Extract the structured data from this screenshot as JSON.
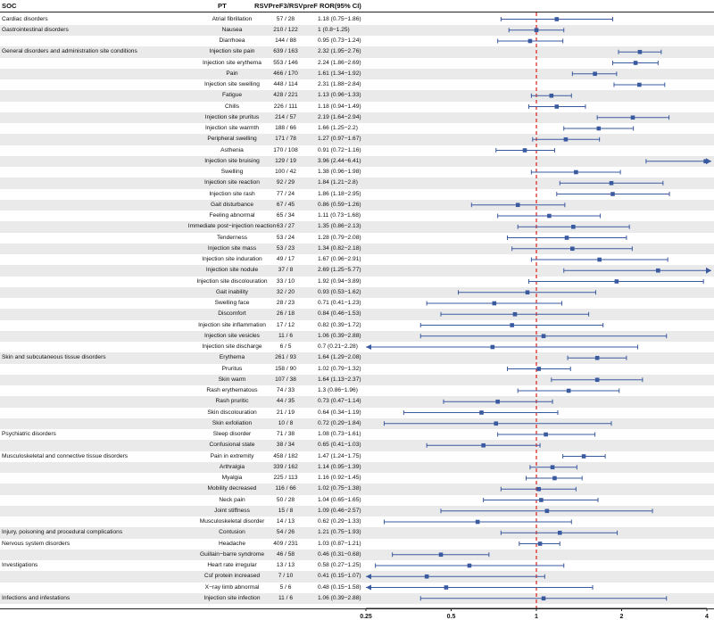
{
  "header": {
    "soc": "SOC",
    "pt": "PT",
    "counts": "RSVPreF3/RSVpreF",
    "ror": "ROR(95% CI)"
  },
  "colors": {
    "ci": "#3a5aa0",
    "refline": "#e0201c",
    "stripe": "#eaeaea"
  },
  "chart_data": {
    "type": "forest",
    "x_scale": "log2",
    "xlim": [
      0.25,
      4
    ],
    "xticks": [
      "0.25",
      "0.5",
      "1",
      "2",
      "4"
    ],
    "reference": 1,
    "rows": [
      {
        "soc": "Cardiac disorders",
        "pt": "Atrial fibrillation",
        "counts": "57 / 28",
        "ror_text": "1.18 (0.75−1.86)",
        "ror": 1.18,
        "lo": 0.75,
        "hi": 1.86
      },
      {
        "soc": "Gastrointestinal disorders",
        "pt": "Nausea",
        "counts": "210 / 122",
        "ror_text": "1 (0.8−1.25)",
        "ror": 1,
        "lo": 0.8,
        "hi": 1.25
      },
      {
        "soc": "",
        "pt": "Diarrhoea",
        "counts": "144 / 88",
        "ror_text": "0.95 (0.73−1.24)",
        "ror": 0.95,
        "lo": 0.73,
        "hi": 1.24
      },
      {
        "soc": "General disorders and administration site conditions",
        "pt": "Injection site pain",
        "counts": "639 / 163",
        "ror_text": "2.32 (1.95−2.76)",
        "ror": 2.32,
        "lo": 1.95,
        "hi": 2.76
      },
      {
        "soc": "",
        "pt": "Injection site erythema",
        "counts": "553 / 146",
        "ror_text": "2.24 (1.86−2.69)",
        "ror": 2.24,
        "lo": 1.86,
        "hi": 2.69
      },
      {
        "soc": "",
        "pt": "Pain",
        "counts": "466 / 170",
        "ror_text": "1.61 (1.34−1.92)",
        "ror": 1.61,
        "lo": 1.34,
        "hi": 1.92
      },
      {
        "soc": "",
        "pt": "Injection site swelling",
        "counts": "448 / 114",
        "ror_text": "2.31 (1.88−2.84)",
        "ror": 2.31,
        "lo": 1.88,
        "hi": 2.84
      },
      {
        "soc": "",
        "pt": "Fatigue",
        "counts": "428 / 221",
        "ror_text": "1.13 (0.96−1.33)",
        "ror": 1.13,
        "lo": 0.96,
        "hi": 1.33
      },
      {
        "soc": "",
        "pt": "Chills",
        "counts": "226 / 111",
        "ror_text": "1.18 (0.94−1.49)",
        "ror": 1.18,
        "lo": 0.94,
        "hi": 1.49
      },
      {
        "soc": "",
        "pt": "Injection site pruritus",
        "counts": "214 / 57",
        "ror_text": "2.19 (1.64−2.94)",
        "ror": 2.19,
        "lo": 1.64,
        "hi": 2.94
      },
      {
        "soc": "",
        "pt": "Injection site warmth",
        "counts": "188 / 66",
        "ror_text": "1.66 (1.25−2.2)",
        "ror": 1.66,
        "lo": 1.25,
        "hi": 2.2
      },
      {
        "soc": "",
        "pt": "Peripheral swelling",
        "counts": "171 / 78",
        "ror_text": "1.27 (0.97−1.67)",
        "ror": 1.27,
        "lo": 0.97,
        "hi": 1.67
      },
      {
        "soc": "",
        "pt": "Asthenia",
        "counts": "170 / 108",
        "ror_text": "0.91 (0.72−1.16)",
        "ror": 0.91,
        "lo": 0.72,
        "hi": 1.16
      },
      {
        "soc": "",
        "pt": "Injection site bruising",
        "counts": "129 / 19",
        "ror_text": "3.96 (2.44−6.41)",
        "ror": 3.96,
        "lo": 2.44,
        "hi": 6.41
      },
      {
        "soc": "",
        "pt": "Swelling",
        "counts": "100 / 42",
        "ror_text": "1.38 (0.96−1.98)",
        "ror": 1.38,
        "lo": 0.96,
        "hi": 1.98
      },
      {
        "soc": "",
        "pt": "Injection site reaction",
        "counts": "92 / 29",
        "ror_text": "1.84 (1.21−2.8)",
        "ror": 1.84,
        "lo": 1.21,
        "hi": 2.8
      },
      {
        "soc": "",
        "pt": "Injection site rash",
        "counts": "77 / 24",
        "ror_text": "1.86 (1.18−2.95)",
        "ror": 1.86,
        "lo": 1.18,
        "hi": 2.95
      },
      {
        "soc": "",
        "pt": "Gait disturbance",
        "counts": "67 / 45",
        "ror_text": "0.86 (0.59−1.26)",
        "ror": 0.86,
        "lo": 0.59,
        "hi": 1.26
      },
      {
        "soc": "",
        "pt": "Feeling abnormal",
        "counts": "65 / 34",
        "ror_text": "1.11 (0.73−1.68)",
        "ror": 1.11,
        "lo": 0.73,
        "hi": 1.68
      },
      {
        "soc": "",
        "pt": "Immediate post−injection reaction",
        "counts": "63 / 27",
        "ror_text": "1.35 (0.86−2.13)",
        "ror": 1.35,
        "lo": 0.86,
        "hi": 2.13
      },
      {
        "soc": "",
        "pt": "Tenderness",
        "counts": "53 / 24",
        "ror_text": "1.28 (0.79−2.08)",
        "ror": 1.28,
        "lo": 0.79,
        "hi": 2.08
      },
      {
        "soc": "",
        "pt": "Injection site mass",
        "counts": "53 / 23",
        "ror_text": "1.34 (0.82−2.18)",
        "ror": 1.34,
        "lo": 0.82,
        "hi": 2.18
      },
      {
        "soc": "",
        "pt": "Injection site induration",
        "counts": "49 / 17",
        "ror_text": "1.67 (0.96−2.91)",
        "ror": 1.67,
        "lo": 0.96,
        "hi": 2.91
      },
      {
        "soc": "",
        "pt": "Injection site nodule",
        "counts": "37 / 8",
        "ror_text": "2.69 (1.25−5.77)",
        "ror": 2.69,
        "lo": 1.25,
        "hi": 5.77
      },
      {
        "soc": "",
        "pt": "Injection site discolouration",
        "counts": "33 / 10",
        "ror_text": "1.92 (0.94−3.89)",
        "ror": 1.92,
        "lo": 0.94,
        "hi": 3.89
      },
      {
        "soc": "",
        "pt": "Gait inability",
        "counts": "32 / 20",
        "ror_text": "0.93 (0.53−1.62)",
        "ror": 0.93,
        "lo": 0.53,
        "hi": 1.62
      },
      {
        "soc": "",
        "pt": "Swelling face",
        "counts": "28 / 23",
        "ror_text": "0.71 (0.41−1.23)",
        "ror": 0.71,
        "lo": 0.41,
        "hi": 1.23
      },
      {
        "soc": "",
        "pt": "Discomfort",
        "counts": "26 / 18",
        "ror_text": "0.84 (0.46−1.53)",
        "ror": 0.84,
        "lo": 0.46,
        "hi": 1.53
      },
      {
        "soc": "",
        "pt": "Injection site inflammation",
        "counts": "17 / 12",
        "ror_text": "0.82 (0.39−1.72)",
        "ror": 0.82,
        "lo": 0.39,
        "hi": 1.72
      },
      {
        "soc": "",
        "pt": "Injection site vesicles",
        "counts": "11 / 6",
        "ror_text": "1.06 (0.39−2.88)",
        "ror": 1.06,
        "lo": 0.39,
        "hi": 2.88
      },
      {
        "soc": "",
        "pt": "Injection site discharge",
        "counts": "6 / 5",
        "ror_text": "0.7 (0.21−2.28)",
        "ror": 0.7,
        "lo": 0.21,
        "hi": 2.28
      },
      {
        "soc": "Skin and subcutaneous tissue disorders",
        "pt": "Erythema",
        "counts": "261 / 93",
        "ror_text": "1.64 (1.29−2.08)",
        "ror": 1.64,
        "lo": 1.29,
        "hi": 2.08
      },
      {
        "soc": "",
        "pt": "Pruritus",
        "counts": "158 / 90",
        "ror_text": "1.02 (0.79−1.32)",
        "ror": 1.02,
        "lo": 0.79,
        "hi": 1.32
      },
      {
        "soc": "",
        "pt": "Skin warm",
        "counts": "107 / 38",
        "ror_text": "1.64 (1.13−2.37)",
        "ror": 1.64,
        "lo": 1.13,
        "hi": 2.37
      },
      {
        "soc": "",
        "pt": "Rash erythematous",
        "counts": "74 / 33",
        "ror_text": "1.3 (0.86−1.96)",
        "ror": 1.3,
        "lo": 0.86,
        "hi": 1.96
      },
      {
        "soc": "",
        "pt": "Rash pruritic",
        "counts": "44 / 35",
        "ror_text": "0.73 (0.47−1.14)",
        "ror": 0.73,
        "lo": 0.47,
        "hi": 1.14
      },
      {
        "soc": "",
        "pt": "Skin discolouration",
        "counts": "21 / 19",
        "ror_text": "0.64 (0.34−1.19)",
        "ror": 0.64,
        "lo": 0.34,
        "hi": 1.19
      },
      {
        "soc": "",
        "pt": "Skin exfoliation",
        "counts": "10 / 8",
        "ror_text": "0.72 (0.29−1.84)",
        "ror": 0.72,
        "lo": 0.29,
        "hi": 1.84
      },
      {
        "soc": "Psychiatric disorders",
        "pt": "Sleep disorder",
        "counts": "71 / 38",
        "ror_text": "1.08 (0.73−1.61)",
        "ror": 1.08,
        "lo": 0.73,
        "hi": 1.61
      },
      {
        "soc": "",
        "pt": "Confusional state",
        "counts": "38 / 34",
        "ror_text": "0.65 (0.41−1.03)",
        "ror": 0.65,
        "lo": 0.41,
        "hi": 1.03
      },
      {
        "soc": "Musculoskeletal and connective tissue disorders",
        "pt": "Pain in extremity",
        "counts": "458 / 182",
        "ror_text": "1.47 (1.24−1.75)",
        "ror": 1.47,
        "lo": 1.24,
        "hi": 1.75
      },
      {
        "soc": "",
        "pt": "Arthralgia",
        "counts": "339 / 162",
        "ror_text": "1.14 (0.95−1.39)",
        "ror": 1.14,
        "lo": 0.95,
        "hi": 1.39
      },
      {
        "soc": "",
        "pt": "Myalgia",
        "counts": "225 / 113",
        "ror_text": "1.16 (0.92−1.45)",
        "ror": 1.16,
        "lo": 0.92,
        "hi": 1.45
      },
      {
        "soc": "",
        "pt": "Mobility decreased",
        "counts": "116 / 66",
        "ror_text": "1.02 (0.75−1.38)",
        "ror": 1.02,
        "lo": 0.75,
        "hi": 1.38
      },
      {
        "soc": "",
        "pt": "Neck pain",
        "counts": "50 / 28",
        "ror_text": "1.04 (0.65−1.65)",
        "ror": 1.04,
        "lo": 0.65,
        "hi": 1.65
      },
      {
        "soc": "",
        "pt": "Joint stiffness",
        "counts": "15 / 8",
        "ror_text": "1.09 (0.46−2.57)",
        "ror": 1.09,
        "lo": 0.46,
        "hi": 2.57
      },
      {
        "soc": "",
        "pt": "Musculoskeletal disorder",
        "counts": "14 / 13",
        "ror_text": "0.62 (0.29−1.33)",
        "ror": 0.62,
        "lo": 0.29,
        "hi": 1.33
      },
      {
        "soc": "Injury, poisoning and procedural complications",
        "pt": "Contusion",
        "counts": "54 / 26",
        "ror_text": "1.21 (0.75−1.93)",
        "ror": 1.21,
        "lo": 0.75,
        "hi": 1.93
      },
      {
        "soc": "Nervous system disorders",
        "pt": "Headache",
        "counts": "409 / 231",
        "ror_text": "1.03 (0.87−1.21)",
        "ror": 1.03,
        "lo": 0.87,
        "hi": 1.21
      },
      {
        "soc": "",
        "pt": "Guillain−barre syndrome",
        "counts": "46 / 58",
        "ror_text": "0.46 (0.31−0.68)",
        "ror": 0.46,
        "lo": 0.31,
        "hi": 0.68
      },
      {
        "soc": "Investigations",
        "pt": "Heart rate irregular",
        "counts": "13 / 13",
        "ror_text": "0.58 (0.27−1.25)",
        "ror": 0.58,
        "lo": 0.27,
        "hi": 1.25
      },
      {
        "soc": "",
        "pt": "Csf protein increased",
        "counts": "7 / 10",
        "ror_text": "0.41 (0.15−1.07)",
        "ror": 0.41,
        "lo": 0.15,
        "hi": 1.07
      },
      {
        "soc": "",
        "pt": "X−ray limb abnormal",
        "counts": "5 / 6",
        "ror_text": "0.48 (0.15−1.58)",
        "ror": 0.48,
        "lo": 0.15,
        "hi": 1.58
      },
      {
        "soc": "Infections and infestations",
        "pt": "Injection site infection",
        "counts": "11 / 6",
        "ror_text": "1.06 (0.39−2.88)",
        "ror": 1.06,
        "lo": 0.39,
        "hi": 2.88
      }
    ]
  }
}
